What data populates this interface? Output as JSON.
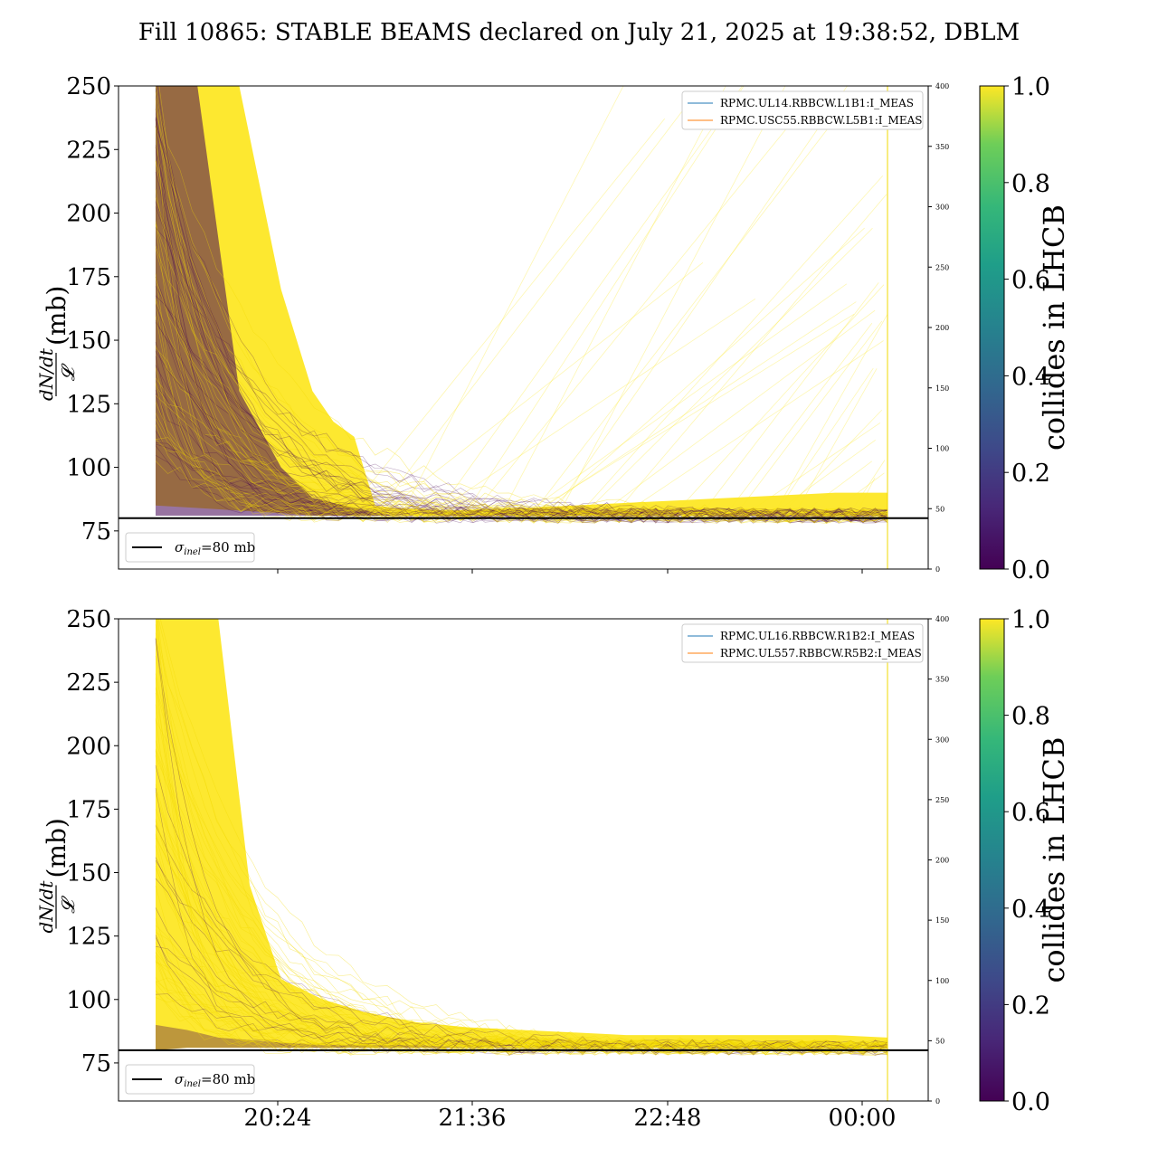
{
  "chart_data": {
    "title": "Fill 10865: STABLE BEAMS declared on July 21, 2025 at 19:38:52, DBLM",
    "type": "line",
    "x_ticks": [
      "20:24",
      "21:36",
      "22:48",
      "00:00"
    ],
    "y_ticks": [
      "75",
      "100",
      "125",
      "150",
      "175",
      "200",
      "225",
      "250"
    ],
    "ylim": [
      60,
      250
    ],
    "y2_ticks": [
      "0",
      "50",
      "100",
      "150",
      "200",
      "250",
      "300",
      "350",
      "400"
    ],
    "y2lim": [
      0,
      400
    ],
    "ylabel": {
      "num": "dN/dt",
      "den": "𝓛",
      "unit": "(mb)"
    },
    "colorbar": {
      "label": "collides in LHCB",
      "ticks": [
        "0.0",
        "0.2",
        "0.4",
        "0.6",
        "0.8",
        "1.0"
      ],
      "range": [
        0,
        1
      ],
      "cmap": "viridis"
    },
    "reference_line": {
      "label_sym": "σ",
      "label_sub": "inel",
      "label_rest": "=80 mb",
      "value": 80
    },
    "panels": [
      {
        "legend": [
          "RPMC.UL14.RBBCW.L1B1:I_MEAS",
          "RPMC.USC55.RBBCW.L5B1:I_MEAS"
        ],
        "series": [
          {
            "name": "RPMC.UL14.RBBCW.L1B1:I_MEAS",
            "color": "#1f77b4"
          },
          {
            "name": "RPMC.USC55.RBBCW.L5B1:I_MEAS",
            "color": "#ff7f0e"
          }
        ],
        "envelope": {
          "x_hours": [
            0,
            0.4,
            0.8,
            1.2,
            1.5,
            1.7,
            1.9,
            2.1,
            2.3,
            2.8,
            3.5,
            4.5,
            5.5,
            6.5,
            7.0
          ],
          "yellow_upper": [
            250,
            250,
            250,
            170,
            130,
            118,
            112,
            85,
            84,
            83,
            84,
            86,
            88,
            90,
            90
          ],
          "yellow_lower": [
            85,
            84,
            83,
            82,
            81,
            81,
            81,
            81,
            81,
            81,
            81,
            81,
            81,
            81,
            81
          ],
          "purple_upper": [
            250,
            250,
            130,
            100,
            88,
            86,
            84,
            82,
            81,
            81,
            81,
            81,
            81,
            81,
            81
          ]
        }
      },
      {
        "legend": [
          "RPMC.UL16.RBBCW.R1B2:I_MEAS",
          "RPMC.UL557.RBBCW.R5B2:I_MEAS"
        ],
        "series": [
          {
            "name": "RPMC.UL16.RBBCW.R1B2:I_MEAS",
            "color": "#1f77b4"
          },
          {
            "name": "RPMC.UL557.RBBCW.R5B2:I_MEAS",
            "color": "#ff7f0e"
          }
        ],
        "envelope": {
          "x_hours": [
            0,
            0.3,
            0.6,
            0.9,
            1.2,
            1.6,
            2.0,
            2.5,
            3.0,
            3.5,
            4.5,
            5.5,
            6.5,
            7.0
          ],
          "yellow_upper": [
            250,
            250,
            250,
            145,
            108,
            100,
            95,
            91,
            89,
            88,
            86,
            86,
            86,
            85
          ],
          "yellow_lower": [
            80,
            81,
            81,
            81,
            81,
            81,
            81,
            81,
            81,
            81,
            81,
            81,
            81,
            81
          ],
          "purple_upper": [
            90,
            88,
            85,
            84,
            83,
            82,
            82,
            82,
            81,
            81,
            81,
            81,
            81,
            81
          ]
        }
      }
    ]
  }
}
